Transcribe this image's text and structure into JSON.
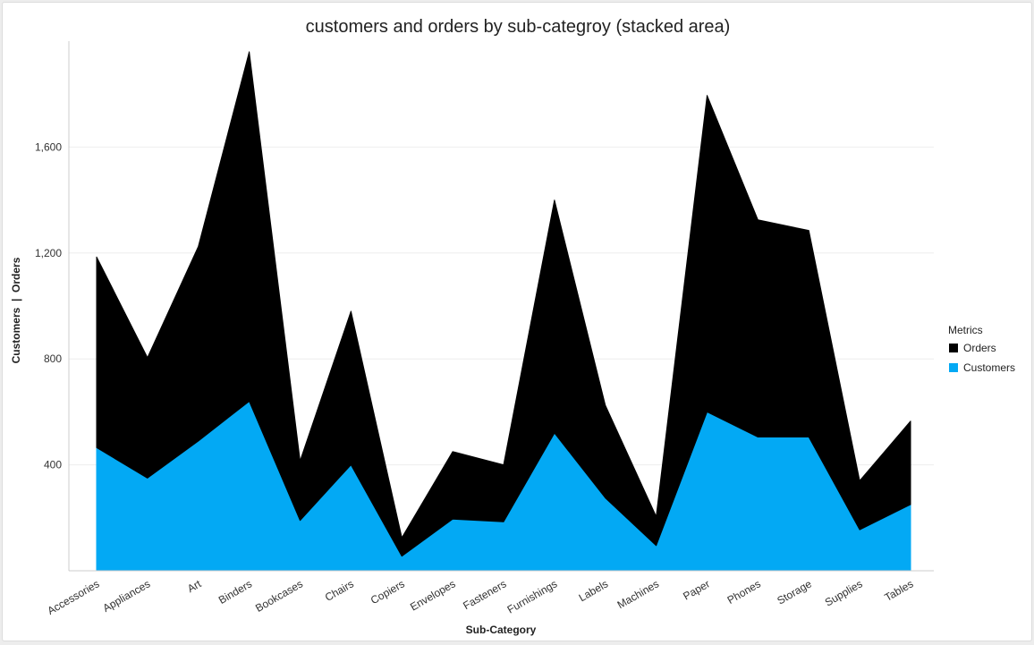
{
  "chart_data": {
    "type": "area",
    "stacked": true,
    "title": "customers and orders by sub-categroy (stacked area)",
    "xlabel": "Sub-Category",
    "ylabel": "Customers  |  Orders",
    "ylim": [
      0,
      2000
    ],
    "yticks": [
      400,
      800,
      1200,
      1600
    ],
    "ytick_labels": [
      "400",
      "800",
      "1,200",
      "1,600"
    ],
    "grid": true,
    "legend": {
      "title": "Metrics",
      "position": "right"
    },
    "categories": [
      "Accessories",
      "Appliances",
      "Art",
      "Binders",
      "Bookcases",
      "Chairs",
      "Copiers",
      "Envelopes",
      "Fasteners",
      "Furnishings",
      "Labels",
      "Machines",
      "Paper",
      "Phones",
      "Storage",
      "Supplies",
      "Tables"
    ],
    "series": [
      {
        "name": "Customers",
        "color": "#03a9f4",
        "values": [
          465,
          350,
          490,
          640,
          190,
          400,
          55,
          195,
          185,
          520,
          275,
          95,
          600,
          505,
          505,
          155,
          250
        ]
      },
      {
        "name": "Orders",
        "color": "#000000",
        "values": [
          720,
          455,
          735,
          1320,
          225,
          580,
          70,
          255,
          215,
          880,
          350,
          110,
          1195,
          820,
          780,
          185,
          315
        ]
      }
    ]
  }
}
